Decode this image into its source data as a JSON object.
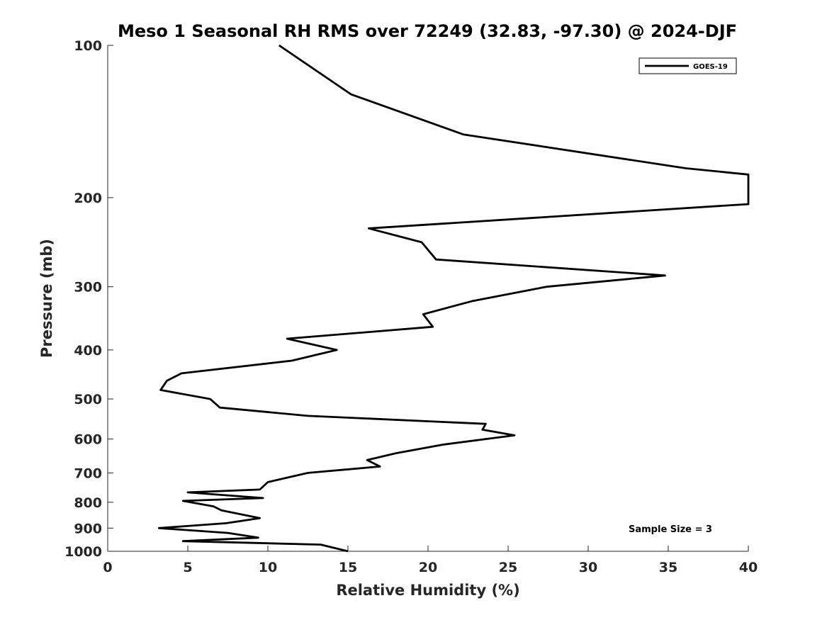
{
  "chart_data": {
    "type": "line",
    "title": "Meso 1 Seasonal RH RMS over 72249 (32.83, -97.30) @ 2024-DJF",
    "xlabel": "Relative Humidity (%)",
    "ylabel": "Pressure (mb)",
    "xlim": [
      0,
      40
    ],
    "ylim": [
      100,
      1000
    ],
    "yscale": "log",
    "y_reversed": true,
    "grid": false,
    "legend_position": "top-right",
    "xticks": [
      0,
      5,
      10,
      15,
      20,
      25,
      30,
      35,
      40
    ],
    "xtick_labels": [
      "0",
      "5",
      "10",
      "15",
      "20",
      "25",
      "30",
      "35",
      "40"
    ],
    "yticks": [
      100,
      200,
      300,
      400,
      500,
      600,
      700,
      800,
      900,
      1000
    ],
    "ytick_labels": [
      "100",
      "200",
      "300",
      "400",
      "500",
      "600",
      "700",
      "800",
      "900",
      "1000"
    ],
    "annotation": "Sample Size = 3",
    "series": [
      {
        "name": "GOES-19",
        "color": "#000000",
        "points": [
          [
            10.7,
            100
          ],
          [
            15.2,
            125
          ],
          [
            22.2,
            150
          ],
          [
            36.1,
            175
          ],
          [
            40,
            180
          ],
          [
            40,
            206
          ],
          [
            16.3,
            230
          ],
          [
            19.6,
            245
          ],
          [
            20.5,
            265
          ],
          [
            34.8,
            285
          ],
          [
            27.4,
            300
          ],
          [
            22.8,
            320
          ],
          [
            19.7,
            340
          ],
          [
            20.3,
            360
          ],
          [
            11.2,
            380
          ],
          [
            14.3,
            400
          ],
          [
            11.5,
            420
          ],
          [
            4.6,
            445
          ],
          [
            3.7,
            460
          ],
          [
            3.3,
            480
          ],
          [
            6.4,
            500
          ],
          [
            7.0,
            520
          ],
          [
            12.5,
            540
          ],
          [
            23.6,
            560
          ],
          [
            23.4,
            575
          ],
          [
            25.4,
            590
          ],
          [
            21.0,
            615
          ],
          [
            18.0,
            640
          ],
          [
            16.2,
            660
          ],
          [
            17.0,
            680
          ],
          [
            12.5,
            700
          ],
          [
            10.0,
            730
          ],
          [
            9.5,
            755
          ],
          [
            5.0,
            765
          ],
          [
            9.7,
            785
          ],
          [
            4.7,
            795
          ],
          [
            6.6,
            815
          ],
          [
            7.1,
            830
          ],
          [
            9.5,
            860
          ],
          [
            7.4,
            880
          ],
          [
            3.2,
            900
          ],
          [
            7.5,
            920
          ],
          [
            9.4,
            940
          ],
          [
            4.7,
            955
          ],
          [
            13.3,
            970
          ],
          [
            15.0,
            1000
          ]
        ]
      }
    ]
  }
}
